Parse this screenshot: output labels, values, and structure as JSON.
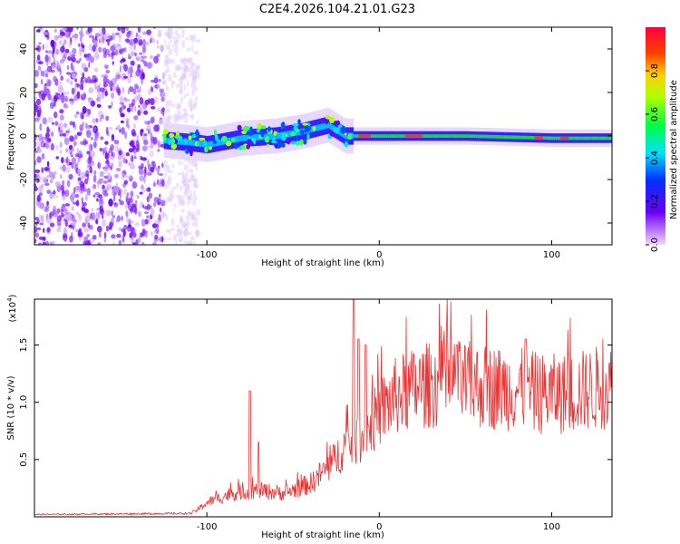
{
  "title": "C2E4.2026.104.21.01.G23",
  "chart_data": [
    {
      "type": "heatmap",
      "name": "spectrogram",
      "xlabel": "Height of straight line (km)",
      "ylabel": "Frequency (Hz)",
      "xlim": [
        -200,
        135
      ],
      "ylim": [
        -50,
        50
      ],
      "xticks": [
        -100,
        0,
        100
      ],
      "xtick_labels": [
        "-100",
        "0",
        "100"
      ],
      "yticks": [
        -40,
        -20,
        0,
        20,
        40
      ],
      "ytick_labels": [
        "-40",
        "-20",
        "0",
        "20",
        "40"
      ],
      "colorbar": {
        "label": "Normalized spectral amplitude",
        "ticks": [
          0.0,
          0.2,
          0.4,
          0.6,
          0.8
        ],
        "tick_labels": [
          "0.0",
          "0.2",
          "0.4",
          "0.6",
          "0.8"
        ],
        "range": [
          0,
          1
        ]
      },
      "noise_region": {
        "x_range": [
          -200,
          -115
        ],
        "freq_range": [
          -50,
          50
        ]
      },
      "track": [
        {
          "x": -125,
          "f": -2
        },
        {
          "x": -110,
          "f": -3
        },
        {
          "x": -100,
          "f": -4
        },
        {
          "x": -80,
          "f": -1
        },
        {
          "x": -60,
          "f": 0
        },
        {
          "x": -45,
          "f": 2
        },
        {
          "x": -30,
          "f": 5
        },
        {
          "x": -20,
          "f": 0
        },
        {
          "x": -10,
          "f": 0
        },
        {
          "x": 0,
          "f": 0
        },
        {
          "x": 50,
          "f": 0
        },
        {
          "x": 100,
          "f": -1
        },
        {
          "x": 135,
          "f": -1
        }
      ]
    },
    {
      "type": "line",
      "name": "snr",
      "xlabel": "Height of straight line (km)",
      "ylabel": "SNR (10 * v/v)",
      "multiplier_label": "(x10",
      "multiplier_exp": "4",
      "multiplier_close": ")",
      "xlim": [
        -200,
        135
      ],
      "ylim": [
        0,
        1.9
      ],
      "xticks": [
        -100,
        0,
        100
      ],
      "xtick_labels": [
        "-100",
        "0",
        "100"
      ],
      "yticks": [
        0.5,
        1.0,
        1.5
      ],
      "ytick_labels": [
        "0.5",
        "1.0",
        "1.5"
      ],
      "color": "#ee3333",
      "envelope": [
        {
          "x": -200,
          "y": 0.02
        },
        {
          "x": -110,
          "y": 0.03
        },
        {
          "x": -105,
          "y": 0.08
        },
        {
          "x": -100,
          "y": 0.15
        },
        {
          "x": -85,
          "y": 0.25
        },
        {
          "x": -70,
          "y": 0.28
        },
        {
          "x": -55,
          "y": 0.25
        },
        {
          "x": -40,
          "y": 0.35
        },
        {
          "x": -28,
          "y": 0.55
        },
        {
          "x": -20,
          "y": 0.75
        },
        {
          "x": -10,
          "y": 0.85
        },
        {
          "x": 0,
          "y": 1.1
        },
        {
          "x": 10,
          "y": 1.28
        },
        {
          "x": 25,
          "y": 1.38
        },
        {
          "x": 40,
          "y": 1.42
        },
        {
          "x": 60,
          "y": 1.38
        },
        {
          "x": 80,
          "y": 1.35
        },
        {
          "x": 95,
          "y": 1.3
        },
        {
          "x": 110,
          "y": 1.3
        },
        {
          "x": 125,
          "y": 1.36
        },
        {
          "x": 135,
          "y": 1.38
        }
      ],
      "spikes": [
        {
          "x": -75,
          "y": 1.1
        },
        {
          "x": -70,
          "y": 0.65
        },
        {
          "x": -15,
          "y": 1.9
        },
        {
          "x": -12,
          "y": 1.55
        },
        {
          "x": -8,
          "y": 1.5
        },
        {
          "x": 45,
          "y": 1.5
        },
        {
          "x": 85,
          "y": 1.55
        }
      ]
    }
  ]
}
